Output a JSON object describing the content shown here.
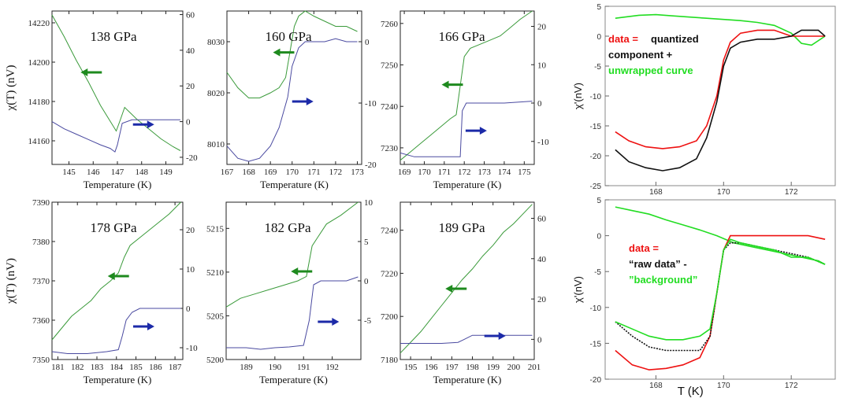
{
  "colors": {
    "green": "#3a9a3a",
    "blue": "#4a4aa0",
    "arrow_green": "#1e8a1e",
    "arrow_blue": "#1c2aa8",
    "r_red": "#ee1111",
    "r_black": "#111111",
    "r_green": "#22dd22"
  },
  "chart_data": [
    {
      "type": "line",
      "label": "138 GPa",
      "xlabel": "Temperature (K)",
      "ylabel": "χ(T)  (nV)",
      "xlim": [
        144.3,
        149.7
      ],
      "xticks": [
        145,
        146,
        147,
        148,
        149
      ],
      "ylim_left": [
        14148,
        14226
      ],
      "yticks_left": [
        14160,
        14180,
        14200,
        14220
      ],
      "ylim_right": [
        -24,
        62
      ],
      "yticks_right": [
        -20,
        0,
        20,
        40,
        60
      ],
      "series": [
        {
          "axis": "left",
          "color": "green",
          "x": [
            144.3,
            144.8,
            145.3,
            145.8,
            146.3,
            146.7,
            146.95,
            147.1,
            147.3,
            147.8,
            148.3,
            148.8,
            149.3,
            149.6
          ],
          "y": [
            14224,
            14213,
            14201,
            14190,
            14178,
            14170,
            14165,
            14170,
            14177,
            14171,
            14166,
            14161,
            14157,
            14155
          ]
        },
        {
          "axis": "right",
          "color": "blue",
          "x": [
            144.3,
            144.8,
            145.3,
            145.8,
            146.3,
            146.7,
            146.9,
            147.0,
            147.2,
            147.6,
            148.2,
            149.0,
            149.6
          ],
          "y": [
            0,
            -4,
            -7,
            -10,
            -13,
            -15,
            -17,
            -13,
            -1,
            1,
            1,
            1,
            1
          ]
        }
      ],
      "arrows": [
        {
          "color": "green",
          "dir": "left",
          "x": 146.0,
          "yr": 0.6
        },
        {
          "color": "blue",
          "dir": "right",
          "x": 148.0,
          "yr": 0.26
        }
      ]
    },
    {
      "type": "line",
      "label": "160 GPa",
      "xlabel": "Temperature (K)",
      "ylabel": "",
      "xlim": [
        167,
        173.2
      ],
      "xticks": [
        167,
        168,
        169,
        170,
        171,
        172,
        173
      ],
      "ylim_left": [
        8006,
        8036
      ],
      "yticks_left": [
        8010,
        8020,
        8030
      ],
      "ylim_right": [
        -20,
        5
      ],
      "yticks_right": [
        -20,
        -10,
        0
      ],
      "series": [
        {
          "axis": "left",
          "color": "green",
          "x": [
            167,
            167.5,
            168,
            168.5,
            169,
            169.4,
            169.7,
            169.9,
            170.1,
            170.3,
            170.6,
            171,
            171.5,
            172,
            172.5,
            173
          ],
          "y": [
            8024,
            8021,
            8019,
            8019,
            8020,
            8021,
            8023,
            8028,
            8033,
            8035,
            8036,
            8035,
            8034,
            8033,
            8033,
            8032
          ]
        },
        {
          "axis": "right",
          "color": "blue",
          "x": [
            167,
            167.5,
            168,
            168.5,
            169,
            169.4,
            169.8,
            170.0,
            170.3,
            170.6,
            171,
            171.5,
            172,
            172.5,
            173
          ],
          "y": [
            -17,
            -19,
            -19.5,
            -19,
            -17,
            -14,
            -9,
            -4,
            -1,
            0,
            0,
            0,
            0.5,
            0,
            0
          ]
        }
      ],
      "arrows": [
        {
          "color": "green",
          "dir": "left",
          "x": 169.7,
          "yr": 0.73
        },
        {
          "color": "blue",
          "dir": "right",
          "x": 170.4,
          "yr": 0.41
        }
      ]
    },
    {
      "type": "line",
      "label": "166 GPa",
      "xlabel": "Temperature (K)",
      "ylabel": "",
      "xlim": [
        168.8,
        175.5
      ],
      "xticks": [
        169,
        170,
        171,
        172,
        173,
        174,
        175
      ],
      "ylim_left": [
        7226,
        7263
      ],
      "yticks_left": [
        7230,
        7240,
        7250,
        7260
      ],
      "ylim_right": [
        -16,
        24
      ],
      "yticks_right": [
        -10,
        0,
        10,
        20
      ],
      "series": [
        {
          "axis": "left",
          "color": "green",
          "x": [
            168.8,
            169.3,
            169.8,
            170.3,
            170.8,
            171.3,
            171.6,
            171.8,
            172.0,
            172.3,
            172.8,
            173.3,
            173.8,
            174.3,
            174.8,
            175.4
          ],
          "y": [
            7227,
            7229,
            7231,
            7233,
            7235,
            7237,
            7238,
            7245,
            7252,
            7254,
            7255,
            7256,
            7257,
            7259,
            7261,
            7263
          ]
        },
        {
          "axis": "right",
          "color": "blue",
          "x": [
            168.8,
            169.5,
            170,
            170.5,
            171,
            171.5,
            171.8,
            171.9,
            172.1,
            172.5,
            173,
            174,
            175.4
          ],
          "y": [
            -13,
            -14,
            -14,
            -14,
            -14,
            -14,
            -14,
            -2,
            0,
            0,
            0,
            0,
            0.5
          ]
        }
      ],
      "arrows": [
        {
          "color": "green",
          "dir": "left",
          "x": 171.5,
          "yr": 0.52
        },
        {
          "color": "blue",
          "dir": "right",
          "x": 172.5,
          "yr": 0.22
        }
      ]
    },
    {
      "type": "line",
      "label": "178 GPa",
      "xlabel": "Temperature (K)",
      "ylabel": "χ(T)  (nV)",
      "xlim": [
        180.7,
        187.4
      ],
      "xticks": [
        181,
        182,
        183,
        184,
        185,
        186,
        187
      ],
      "ylim_left": [
        7350,
        7390
      ],
      "yticks_left": [
        7350,
        7360,
        7370,
        7380,
        7390
      ],
      "ylim_right": [
        -13,
        27
      ],
      "yticks_right": [
        -10,
        0,
        10,
        20
      ],
      "series": [
        {
          "axis": "left",
          "color": "green",
          "x": [
            180.7,
            181.2,
            181.7,
            182.2,
            182.7,
            183.2,
            183.7,
            184.1,
            184.4,
            184.7,
            185.2,
            185.7,
            186.2,
            186.7,
            187.3
          ],
          "y": [
            7355,
            7358,
            7361,
            7363,
            7365,
            7368,
            7370,
            7372,
            7376,
            7379,
            7381,
            7383,
            7385,
            7387,
            7390
          ]
        },
        {
          "axis": "right",
          "color": "blue",
          "x": [
            180.7,
            181.5,
            182.5,
            183.5,
            184.1,
            184.3,
            184.5,
            184.8,
            185.2,
            186,
            186.7,
            187.3
          ],
          "y": [
            -11,
            -11.5,
            -11.5,
            -11,
            -10.5,
            -7,
            -3,
            -1,
            0,
            0,
            0,
            0
          ]
        }
      ],
      "arrows": [
        {
          "color": "green",
          "dir": "left",
          "x": 184.2,
          "yr": 0.53
        },
        {
          "color": "blue",
          "dir": "right",
          "x": 185.3,
          "yr": 0.21
        }
      ]
    },
    {
      "type": "line",
      "label": "182 GPa",
      "xlabel": "Temperature (K)",
      "ylabel": "",
      "xlim": [
        188.3,
        193
      ],
      "xticks": [
        189,
        190,
        191,
        192
      ],
      "ylim_left": [
        5200,
        5218
      ],
      "yticks_left": [
        5200,
        5205,
        5210,
        5215
      ],
      "ylim_right": [
        -10,
        10
      ],
      "yticks_right": [
        -5,
        0,
        5,
        10
      ],
      "series": [
        {
          "axis": "left",
          "color": "green",
          "x": [
            188.3,
            188.8,
            189.3,
            189.8,
            190.3,
            190.8,
            191.1,
            191.3,
            191.5,
            191.8,
            192.3,
            192.9
          ],
          "y": [
            5206,
            5207,
            5207.5,
            5208,
            5208.5,
            5209,
            5209.5,
            5213,
            5214,
            5215.5,
            5216.5,
            5218
          ]
        },
        {
          "axis": "right",
          "color": "blue",
          "x": [
            188.3,
            189,
            189.5,
            190,
            190.5,
            191,
            191.2,
            191.35,
            191.6,
            192,
            192.5,
            192.9
          ],
          "y": [
            -8.5,
            -8.5,
            -8.7,
            -8.5,
            -8.4,
            -8.2,
            -5,
            -0.5,
            0,
            0,
            0,
            0.5
          ]
        }
      ],
      "arrows": [
        {
          "color": "green",
          "dir": "left",
          "x": 191.0,
          "yr": 0.56
        },
        {
          "color": "blue",
          "dir": "right",
          "x": 191.8,
          "yr": 0.24
        }
      ]
    },
    {
      "type": "line",
      "label": "189 GPa",
      "xlabel": "Temperature (K)",
      "ylabel": "",
      "xlim": [
        194.5,
        201
      ],
      "xticks": [
        195,
        196,
        197,
        198,
        199,
        200,
        201
      ],
      "ylim_left": [
        7180,
        7253
      ],
      "yticks_left": [
        7180,
        7200,
        7220,
        7240
      ],
      "ylim_right": [
        -10,
        68
      ],
      "yticks_right": [
        0,
        20,
        40,
        60
      ],
      "series": [
        {
          "axis": "left",
          "color": "green",
          "x": [
            194.5,
            195,
            195.5,
            196,
            196.5,
            197,
            197.5,
            198,
            198.5,
            199,
            199.5,
            200,
            200.5,
            200.9
          ],
          "y": [
            7183,
            7188,
            7193,
            7199,
            7205,
            7211,
            7217,
            7222,
            7228,
            7233,
            7239,
            7243,
            7248,
            7252
          ]
        },
        {
          "axis": "right",
          "color": "blue",
          "x": [
            194.5,
            195.5,
            196.5,
            197.3,
            197.6,
            197.8,
            198,
            198.5,
            199.5,
            200.9
          ],
          "y": [
            -2,
            -2,
            -2,
            -1.5,
            0,
            1,
            2,
            2,
            2,
            2
          ]
        }
      ],
      "arrows": [
        {
          "color": "green",
          "dir": "left",
          "x": 197.3,
          "yr": 0.45
        },
        {
          "color": "blue",
          "dir": "right",
          "x": 199.0,
          "yr": 0.15
        }
      ]
    },
    {
      "type": "line",
      "label": "",
      "xlabel": "",
      "ylabel": "χ'(nV)",
      "xlim": [
        166.5,
        173.3
      ],
      "xticks": [
        168,
        170,
        172
      ],
      "ylim": [
        -25,
        5
      ],
      "yticks": [
        5,
        0,
        -5,
        -10,
        -15,
        -20,
        -25
      ],
      "legend_text": [
        {
          "text": "data = ",
          "color": "red"
        },
        {
          "text": "quantized",
          "color": "black"
        },
        {
          "text": "component +",
          "color": "black"
        },
        {
          "text": "unwrapped curve",
          "color": "green"
        }
      ],
      "series": [
        {
          "color": "green",
          "x": [
            166.8,
            167.5,
            168,
            168.5,
            169,
            169.5,
            170,
            170.5,
            171,
            171.5,
            172,
            172.3,
            172.6,
            173
          ],
          "y": [
            3,
            3.5,
            3.6,
            3.4,
            3.2,
            3,
            2.8,
            2.6,
            2.3,
            1.8,
            0.5,
            -1.2,
            -1.5,
            0
          ]
        },
        {
          "color": "red",
          "x": [
            166.8,
            167.2,
            167.7,
            168.2,
            168.7,
            169.2,
            169.5,
            169.8,
            170,
            170.2,
            170.5,
            171,
            171.5,
            172,
            172.5,
            173
          ],
          "y": [
            -16,
            -17.5,
            -18.5,
            -18.8,
            -18.5,
            -17.5,
            -15,
            -10,
            -4,
            -1,
            0.5,
            1,
            1,
            0,
            0,
            0
          ]
        },
        {
          "color": "black",
          "x": [
            166.8,
            167.2,
            167.7,
            168.2,
            168.7,
            169.2,
            169.5,
            169.8,
            170,
            170.2,
            170.5,
            171,
            171.5,
            172,
            172.3,
            172.8,
            173
          ],
          "y": [
            -19,
            -21,
            -22,
            -22.5,
            -22,
            -20.5,
            -17,
            -11,
            -5,
            -2,
            -1,
            -0.5,
            -0.5,
            0,
            1,
            1,
            0
          ]
        }
      ]
    },
    {
      "type": "line",
      "label": "",
      "xlabel": "T (K)",
      "ylabel": "χ'(nV)",
      "xlim": [
        166.5,
        173.3
      ],
      "xticks": [
        168,
        170,
        172
      ],
      "ylim": [
        -20,
        5
      ],
      "yticks": [
        5,
        0,
        -5,
        -10,
        -15,
        -20
      ],
      "legend_text": [
        {
          "text": "data =",
          "color": "red"
        },
        {
          "text": "“raw data” -",
          "color": "black"
        },
        {
          "text": "”background”",
          "color": "green"
        }
      ],
      "series": [
        {
          "color": "green",
          "x": [
            166.8,
            167.3,
            167.8,
            168.3,
            168.8,
            169.3,
            169.8,
            170.3,
            170.8,
            171.3,
            171.8,
            172.3,
            172.8,
            173
          ],
          "y": [
            4,
            3.5,
            3,
            2.2,
            1.5,
            0.8,
            0,
            -1,
            -1.5,
            -2,
            -2.5,
            -3,
            -3.5,
            -4
          ]
        },
        {
          "color": "red",
          "x": [
            166.8,
            167.3,
            167.8,
            168.3,
            168.8,
            169.3,
            169.6,
            169.8,
            170,
            170.2,
            170.5,
            171,
            171.5,
            172,
            172.5,
            173
          ],
          "y": [
            -16,
            -18,
            -18.7,
            -18.5,
            -18,
            -17,
            -14,
            -8,
            -2,
            0,
            0,
            0,
            0,
            0,
            0,
            -0.5
          ]
        },
        {
          "color": "black",
          "x": [
            166.8,
            167.3,
            167.8,
            168.3,
            168.8,
            169.3,
            169.6,
            169.8,
            170,
            170.2,
            170.5,
            171,
            171.5,
            172,
            172.5,
            173
          ],
          "y": [
            -12,
            -14,
            -15.5,
            -16,
            -16,
            -16,
            -14,
            -8,
            -2,
            -1,
            -1,
            -1.5,
            -2,
            -2.5,
            -3,
            -4
          ]
        },
        {
          "color": "green",
          "x": [
            166.8,
            167.3,
            167.8,
            168.3,
            168.8,
            169.3,
            169.6,
            169.8,
            170,
            170.2,
            170.5,
            171,
            171.5,
            172,
            172.5,
            173
          ],
          "y": [
            -12,
            -13,
            -14,
            -14.5,
            -14.5,
            -14,
            -13,
            -8,
            -2,
            -0.5,
            -1,
            -1.5,
            -2,
            -3,
            -3,
            -4
          ]
        }
      ]
    }
  ]
}
